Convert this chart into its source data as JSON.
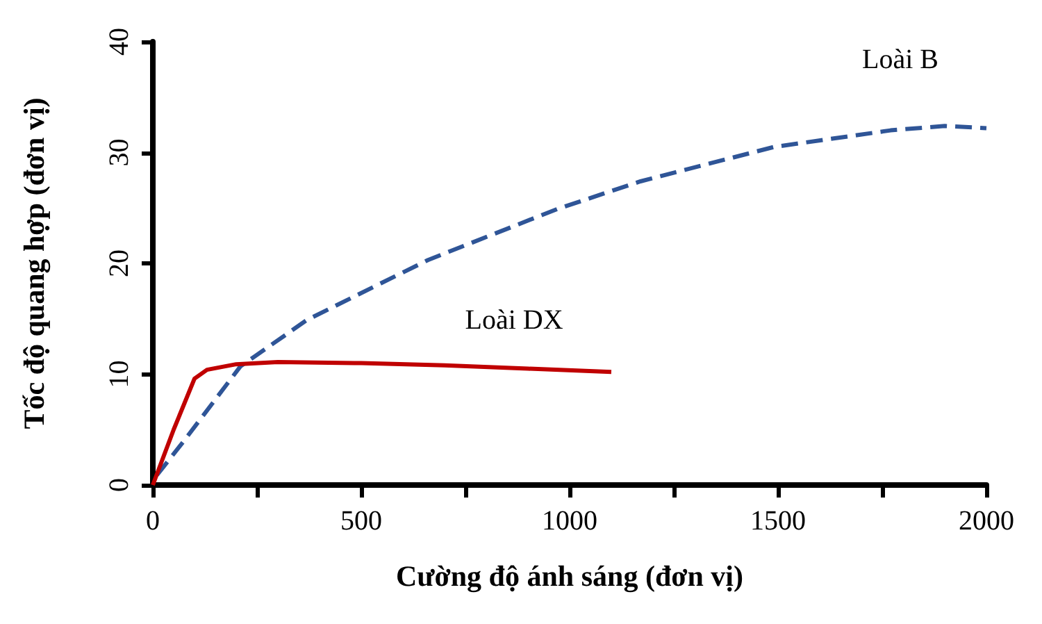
{
  "chart_data": {
    "type": "line",
    "xlabel": "Cường độ ánh sáng (đơn vị)",
    "ylabel": "Tốc độ quang hợp (đơn vị)",
    "xlim": [
      0,
      2000
    ],
    "ylim": [
      0,
      40
    ],
    "xticks": [
      0,
      {
        "value": 250,
        "label": null
      },
      500,
      {
        "value": 750,
        "label": null
      },
      1000,
      {
        "value": 1250,
        "label": null
      },
      1500,
      {
        "value": 1750,
        "label": null
      },
      2000
    ],
    "yticks": [
      0,
      10,
      20,
      30,
      40
    ],
    "grid": false,
    "legend": false,
    "marker": "none",
    "series": [
      {
        "name": "Loài B",
        "color": "#2f5597",
        "line_style": "dashed",
        "x": [
          10,
          75,
          210,
          370,
          660,
          970,
          1170,
          1490,
          1770,
          1900,
          2000
        ],
        "values": [
          0.9,
          4,
          10.7,
          14.9,
          20.3,
          24.9,
          27.4,
          30.5,
          32,
          32.4,
          32.2
        ]
      },
      {
        "name": "Loài DX",
        "color": "#c00000",
        "line_style": "solid",
        "x": [
          0,
          50,
          100,
          130,
          200,
          300,
          500,
          700,
          900,
          1100
        ],
        "values": [
          0,
          5,
          9.6,
          10.4,
          10.9,
          11.1,
          11,
          10.8,
          10.5,
          10.2
        ]
      }
    ]
  }
}
